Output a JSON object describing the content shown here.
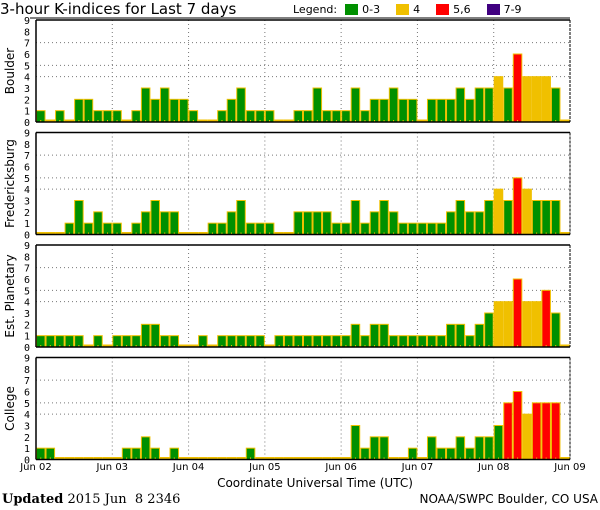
{
  "chart_data": {
    "type": "bar",
    "title": "3-hour K-indices for Last 7 days",
    "xlabel": "Coordinate Universal Time (UTC)",
    "x_ticks": [
      "Jun 02",
      "Jun 03",
      "Jun 04",
      "Jun 05",
      "Jun 06",
      "Jun 07",
      "Jun 08",
      "Jun 09"
    ],
    "y_ticks": [
      "0",
      "1",
      "2",
      "3",
      "4",
      "5",
      "6",
      "7",
      "8",
      "9"
    ],
    "ylim": [
      0,
      9
    ],
    "gridlines_y": [
      4,
      5,
      7
    ],
    "legend": {
      "label": "Legend:",
      "placement": "top-right",
      "entries": [
        {
          "label": "0-3",
          "color": "#009000"
        },
        {
          "label": "4",
          "color": "#f0c000"
        },
        {
          "label": "5,6",
          "color": "#ff0000"
        },
        {
          "label": "7-9",
          "color": "#400080"
        }
      ]
    },
    "bar_outline_color": "#f0c000",
    "panels": [
      {
        "name": "Boulder",
        "values": [
          1,
          0,
          1,
          0,
          2,
          2,
          1,
          1,
          1,
          0,
          1,
          3,
          2,
          3,
          2,
          2,
          1,
          0,
          0,
          1,
          2,
          3,
          1,
          1,
          1,
          0,
          0,
          1,
          1,
          3,
          1,
          1,
          1,
          3,
          1,
          2,
          2,
          3,
          2,
          2,
          0,
          2,
          2,
          2,
          3,
          2,
          3,
          3,
          4,
          3,
          6,
          4,
          4,
          4,
          3,
          0
        ]
      },
      {
        "name": "Fredericksburg",
        "values": [
          0,
          0,
          0,
          1,
          3,
          1,
          2,
          1,
          1,
          0,
          1,
          2,
          3,
          2,
          2,
          0,
          0,
          0,
          1,
          1,
          2,
          3,
          1,
          1,
          1,
          0,
          0,
          2,
          2,
          2,
          2,
          1,
          1,
          3,
          1,
          2,
          3,
          2,
          1,
          1,
          1,
          1,
          1,
          2,
          3,
          2,
          2,
          3,
          4,
          3,
          5,
          4,
          3,
          3,
          3,
          0
        ]
      },
      {
        "name": "Est. Planetary",
        "values": [
          1,
          1,
          1,
          1,
          1,
          0,
          1,
          0,
          1,
          1,
          1,
          2,
          2,
          1,
          1,
          0,
          0,
          1,
          0,
          1,
          1,
          1,
          1,
          1,
          0,
          1,
          1,
          1,
          1,
          1,
          1,
          1,
          1,
          2,
          1,
          2,
          2,
          1,
          1,
          1,
          1,
          1,
          1,
          2,
          2,
          1,
          2,
          3,
          4,
          4,
          6,
          4,
          4,
          5,
          3,
          0
        ]
      },
      {
        "name": "College",
        "values": [
          1,
          1,
          0,
          0,
          0,
          0,
          0,
          0,
          0,
          1,
          1,
          2,
          1,
          0,
          1,
          0,
          0,
          0,
          0,
          0,
          0,
          0,
          1,
          0,
          0,
          0,
          0,
          0,
          0,
          0,
          0,
          0,
          0,
          3,
          1,
          2,
          2,
          0,
          0,
          1,
          0,
          2,
          1,
          1,
          2,
          1,
          2,
          2,
          3,
          5,
          6,
          4,
          5,
          5,
          5,
          0
        ]
      }
    ]
  },
  "footer": {
    "updated_label": "Updated",
    "updated_value": "2015 Jun  8 2346",
    "credit": "NOAA/SWPC Boulder, CO USA"
  }
}
